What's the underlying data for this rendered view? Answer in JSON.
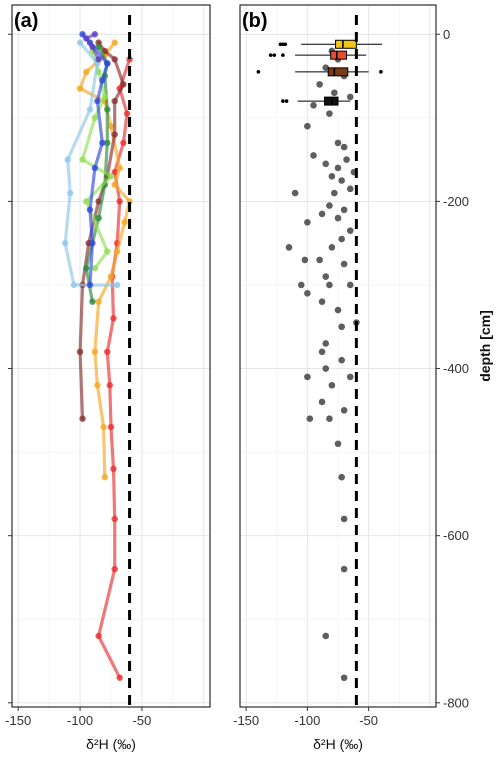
{
  "chart_data": [
    {
      "type": "line",
      "panel_label": "(a)",
      "xlabel": "δ²H (‰)",
      "ylabel": "",
      "xlim": [
        -155,
        5
      ],
      "ylim": [
        -805,
        35
      ],
      "x_ticks": [
        -150,
        -100,
        -50
      ],
      "y_ticks": [
        0,
        -200,
        -400,
        -600,
        -800
      ],
      "grid": true,
      "reference_line": {
        "x": -60,
        "style": "dashed",
        "color": "#000000"
      },
      "series": [
        {
          "color": "#e83030",
          "points": [
            [
              -68,
              -770
            ],
            [
              -85,
              -720
            ],
            [
              -72,
              -640
            ],
            [
              -72,
              -580
            ],
            [
              -73,
              -520
            ],
            [
              -75,
              -470
            ],
            [
              -76,
              -420
            ],
            [
              -78,
              -380
            ],
            [
              -73,
              -340
            ],
            [
              -74,
              -290
            ],
            [
              -70,
              -250
            ],
            [
              -68,
              -200
            ],
            [
              -72,
              -165
            ],
            [
              -65,
              -130
            ],
            [
              -62,
              -95
            ],
            [
              -68,
              -65
            ],
            [
              -60,
              -30
            ]
          ]
        },
        {
          "color": "#f5a623",
          "points": [
            [
              -80,
              -530
            ],
            [
              -81,
              -470
            ],
            [
              -86,
              -420
            ],
            [
              -88,
              -380
            ],
            [
              -85,
              -320
            ],
            [
              -75,
              -290
            ],
            [
              -70,
              -260
            ],
            [
              -64,
              -225
            ],
            [
              -60,
              -200
            ],
            [
              -72,
              -180
            ],
            [
              -68,
              -160
            ],
            [
              -75,
              -110
            ],
            [
              -80,
              -80
            ],
            [
              -100,
              -65
            ],
            [
              -95,
              -45
            ],
            [
              -80,
              -25
            ],
            [
              -72,
              -10
            ]
          ]
        },
        {
          "color": "#8b2e2e",
          "points": [
            [
              -98,
              -460
            ],
            [
              -100,
              -380
            ],
            [
              -98,
              -300
            ],
            [
              -93,
              -250
            ],
            [
              -85,
              -200
            ],
            [
              -78,
              -170
            ],
            [
              -72,
              -120
            ],
            [
              -72,
              -80
            ],
            [
              -65,
              -60
            ],
            [
              -72,
              -30
            ],
            [
              -80,
              -20
            ],
            [
              -85,
              -10
            ]
          ]
        },
        {
          "color": "#2e8b3e",
          "points": [
            [
              -90,
              -320
            ],
            [
              -95,
              -280
            ],
            [
              -85,
              -220
            ],
            [
              -80,
              -180
            ],
            [
              -78,
              -130
            ],
            [
              -78,
              -90
            ],
            [
              -80,
              -50
            ],
            [
              -78,
              -35
            ],
            [
              -85,
              -15
            ]
          ]
        },
        {
          "color": "#90e050",
          "points": [
            [
              -88,
              -280
            ],
            [
              -78,
              -260
            ],
            [
              -95,
              -200
            ],
            [
              -75,
              -170
            ],
            [
              -98,
              -150
            ],
            [
              -88,
              -100
            ],
            [
              -80,
              -75
            ],
            [
              -85,
              -45
            ],
            [
              -90,
              -20
            ]
          ]
        },
        {
          "color": "#8fc8ea",
          "points": [
            [
              -70,
              -300
            ],
            [
              -105,
              -300
            ],
            [
              -112,
              -250
            ],
            [
              -108,
              -190
            ],
            [
              -110,
              -150
            ],
            [
              -92,
              -90
            ],
            [
              -86,
              -35
            ],
            [
              -100,
              -10
            ]
          ]
        },
        {
          "color": "#3048e0",
          "points": [
            [
              -92,
              -300
            ],
            [
              -90,
              -250
            ],
            [
              -92,
              -210
            ],
            [
              -88,
              -160
            ],
            [
              -82,
              -130
            ],
            [
              -86,
              -80
            ],
            [
              -82,
              -55
            ],
            [
              -78,
              -35
            ],
            [
              -92,
              -10
            ],
            [
              -98,
              0
            ]
          ]
        },
        {
          "color": "#5a3fc0",
          "points": [
            [
              -85,
              -30
            ],
            [
              -90,
              -15
            ],
            [
              -95,
              -5
            ],
            [
              -88,
              0
            ]
          ]
        }
      ]
    },
    {
      "type": "scatter",
      "panel_label": "(b)",
      "xlabel": "δ²H (‰)",
      "ylabel": "depth [cm]",
      "xlim": [
        -155,
        5
      ],
      "ylim": [
        -805,
        35
      ],
      "x_ticks": [
        -150,
        -100,
        -50
      ],
      "y_ticks": [
        0,
        -200,
        -400,
        -600,
        -800
      ],
      "grid": true,
      "reference_line": {
        "x": -60,
        "style": "dashed",
        "color": "#000000"
      },
      "points": [
        [
          -80,
          -20
        ],
        [
          -75,
          -30
        ],
        [
          -85,
          -40
        ],
        [
          -70,
          -50
        ],
        [
          -90,
          -60
        ],
        [
          -78,
          -70
        ],
        [
          -65,
          -75
        ],
        [
          -95,
          -85
        ],
        [
          -82,
          -95
        ],
        [
          -100,
          -110
        ],
        [
          -75,
          -130
        ],
        [
          -70,
          -135
        ],
        [
          -68,
          -150
        ],
        [
          -95,
          -145
        ],
        [
          -85,
          -155
        ],
        [
          -75,
          -160
        ],
        [
          -62,
          -165
        ],
        [
          -80,
          -170
        ],
        [
          -72,
          -175
        ],
        [
          -65,
          -185
        ],
        [
          -110,
          -190
        ],
        [
          -78,
          -190
        ],
        [
          -82,
          -205
        ],
        [
          -70,
          -210
        ],
        [
          -88,
          -215
        ],
        [
          -75,
          -220
        ],
        [
          -100,
          -225
        ],
        [
          -65,
          -235
        ],
        [
          -72,
          -245
        ],
        [
          -80,
          -255
        ],
        [
          -115,
          -255
        ],
        [
          -90,
          -270
        ],
        [
          -102,
          -270
        ],
        [
          -70,
          -275
        ],
        [
          -85,
          -290
        ],
        [
          -105,
          -300
        ],
        [
          -82,
          -300
        ],
        [
          -65,
          -300
        ],
        [
          -100,
          -310
        ],
        [
          -88,
          -320
        ],
        [
          -75,
          -330
        ],
        [
          -72,
          -350
        ],
        [
          -60,
          -345
        ],
        [
          -85,
          -370
        ],
        [
          -88,
          -380
        ],
        [
          -72,
          -390
        ],
        [
          -85,
          -400
        ],
        [
          -100,
          -410
        ],
        [
          -80,
          -420
        ],
        [
          -65,
          -410
        ],
        [
          -88,
          -440
        ],
        [
          -70,
          -450
        ],
        [
          -98,
          -460
        ],
        [
          -82,
          -460
        ],
        [
          -75,
          -490
        ],
        [
          -72,
          -530
        ],
        [
          -70,
          -580
        ],
        [
          -70,
          -640
        ],
        [
          -85,
          -720
        ],
        [
          -70,
          -770
        ]
      ],
      "boxplots": [
        {
          "color": "#f5c518",
          "q1": -77,
          "median": -71,
          "q3": -60,
          "whisker_low": -105,
          "whisker_high": -39,
          "outliers": [
            -122,
            -120,
            -118
          ]
        },
        {
          "color": "#e84a30",
          "q1": -81,
          "median": -76,
          "q3": -68,
          "whisker_low": -110,
          "whisker_high": -52,
          "outliers": [
            -130,
            -127,
            -120
          ]
        },
        {
          "color": "#7a3a18",
          "q1": -83,
          "median": -78,
          "q3": -67,
          "whisker_low": -110,
          "whisker_high": -50,
          "outliers": [
            -140,
            -40
          ]
        },
        {
          "color": "#111111",
          "q1": -86,
          "median": -80,
          "q3": -75,
          "whisker_low": -108,
          "whisker_high": -65,
          "outliers": [
            -120,
            -117
          ]
        }
      ]
    }
  ]
}
